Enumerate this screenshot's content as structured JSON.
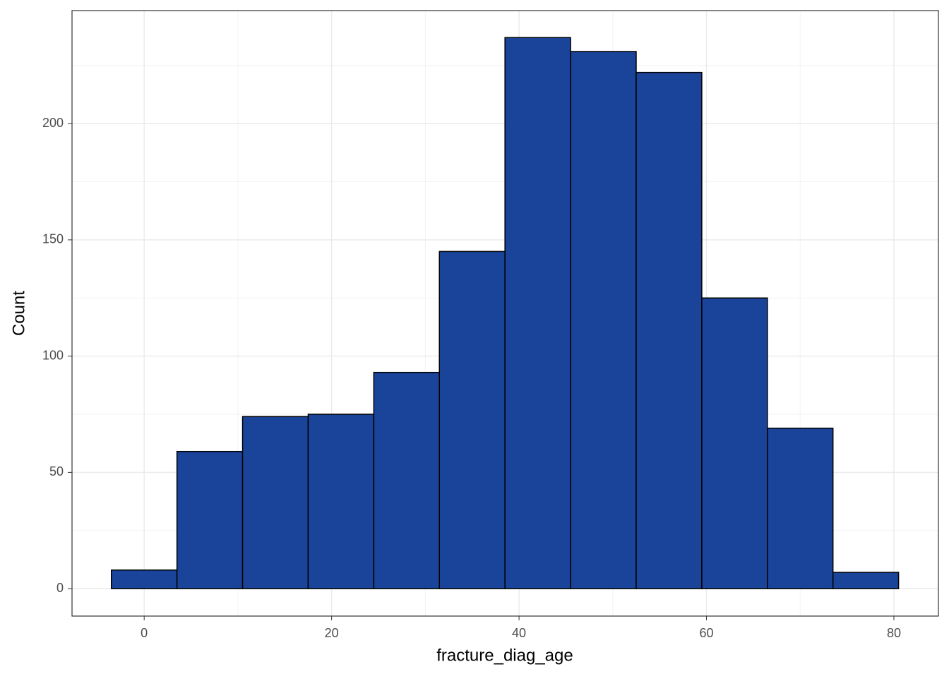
{
  "chart_data": {
    "type": "histogram",
    "x_label": "fracture_diag_age",
    "y_label": "Count",
    "bins": [
      -3.5,
      3.5,
      10.5,
      17.5,
      24.5,
      31.5,
      38.5,
      45.5,
      52.5,
      59.5,
      66.5,
      73.5,
      80.5
    ],
    "values": [
      8,
      59,
      74,
      75,
      93,
      145,
      237,
      231,
      222,
      125,
      69,
      7
    ],
    "color": "#1a4499",
    "edge_color": "#000000",
    "xlim": [
      -7.7,
      84.75
    ],
    "ylim": [
      -11.8,
      248.6
    ],
    "xticks": [
      0,
      20,
      40,
      60,
      80
    ],
    "yticks": [
      0,
      50,
      100,
      150,
      200
    ],
    "xminor": [
      10,
      30,
      50,
      70
    ],
    "yminor": [
      25,
      75,
      125,
      175,
      225
    ],
    "grid": true
  }
}
